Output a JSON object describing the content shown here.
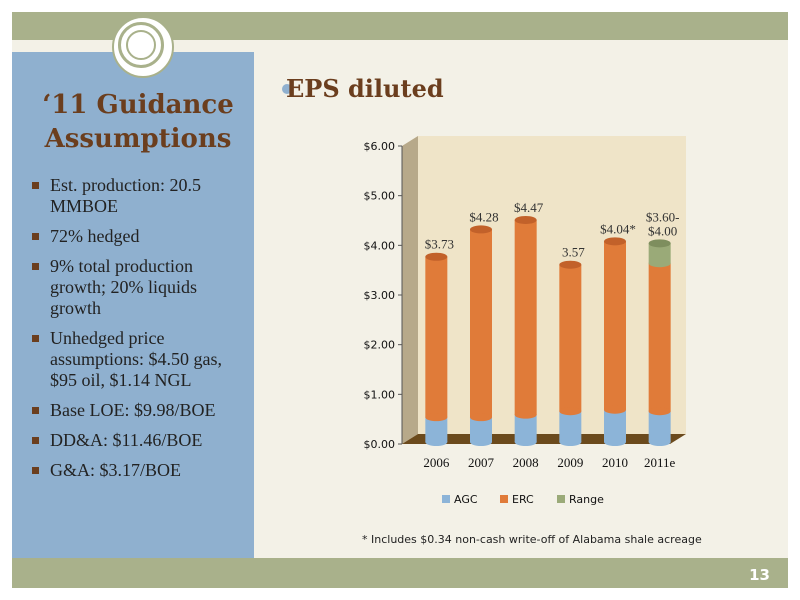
{
  "slide": {
    "title_line1": "‘11 Guidance",
    "title_line2": "Assumptions",
    "bullets": [
      "Est. production: 20.5 MMBOE",
      "72% hedged",
      "9% total production growth; 20% liquids growth",
      "Unhedged price assumptions: $4.50 gas, $95 oil, $1.14 NGL",
      "Base LOE: $9.98/BOE",
      "DD&A: $11.46/BOE",
      "G&A: $3.17/BOE"
    ],
    "heading": "EPS diluted",
    "page_number": "13",
    "footnote": "* Includes $0.34 non-cash write-off of Alabama shale acreage"
  },
  "colors": {
    "frame_bar": "#a9b18b",
    "left_panel": "#8fb0cf",
    "title": "#6b3e1e",
    "agc": "#8cb4d8",
    "erc": "#e07b39",
    "range": "#9aaa78",
    "plot_back": "#efe4c8"
  },
  "chart_data": {
    "type": "bar",
    "stacked": true,
    "categories": [
      "2006",
      "2007",
      "2008",
      "2009",
      "2010",
      "2011e"
    ],
    "series": [
      {
        "name": "AGC",
        "values": [
          0.5,
          0.5,
          0.55,
          0.62,
          0.65,
          0.62
        ]
      },
      {
        "name": "ERC",
        "values": [
          3.23,
          3.78,
          3.92,
          2.95,
          3.39,
          2.98
        ]
      },
      {
        "name": "Range",
        "values": [
          0,
          0,
          0,
          0,
          0,
          0.4
        ]
      }
    ],
    "data_labels": [
      "$3.73",
      "$4.28",
      "$4.47",
      "3.57",
      "$4.04*",
      "$3.60-\n$4.00"
    ],
    "y_ticks": [
      "$0.00",
      "$1.00",
      "$2.00",
      "$3.00",
      "$4.00",
      "$5.00",
      "$6.00"
    ],
    "ylim": [
      0,
      6
    ],
    "legend_position": "bottom",
    "grid": false
  }
}
